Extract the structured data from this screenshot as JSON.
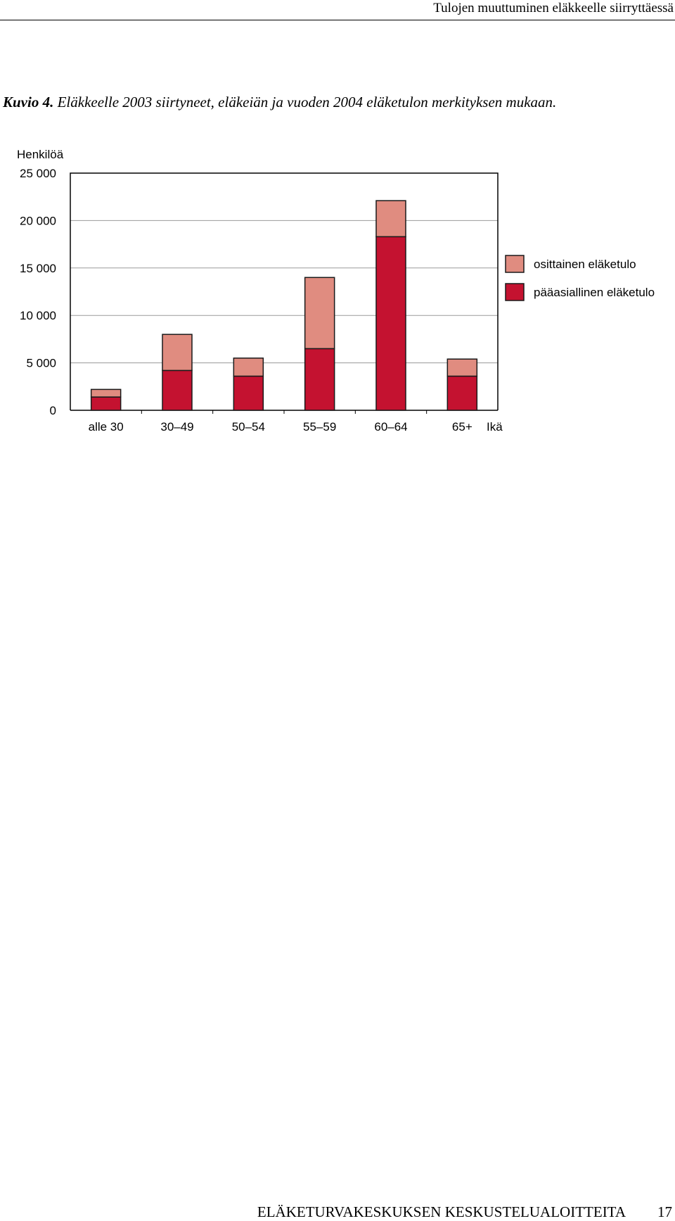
{
  "header": {
    "title": "Tulojen muuttuminen eläkkeelle siirryttäessä"
  },
  "caption": {
    "lead": "Kuvio 4.",
    "text": "Eläkkeelle 2003 siirtyneet, eläkeiän ja vuoden 2004 eläketulon merkityksen mukaan."
  },
  "chart_data": {
    "type": "bar",
    "stacked": true,
    "ylabel": "Henkilöä",
    "xlabel": "Ikä",
    "categories": [
      "alle 30",
      "30–49",
      "50–54",
      "55–59",
      "60–64",
      "65+"
    ],
    "series": [
      {
        "name": "pääasiallinen eläketulo",
        "color": "#c41230",
        "values": [
          1400,
          4200,
          3600,
          6500,
          18300,
          3600
        ]
      },
      {
        "name": "osittainen eläketulo",
        "color": "#e08c80",
        "values": [
          800,
          3800,
          1900,
          7500,
          3800,
          1800
        ]
      }
    ],
    "ylim": [
      0,
      25000
    ],
    "yticks": [
      0,
      5000,
      10000,
      15000,
      20000,
      25000
    ],
    "ytick_labels": [
      "0",
      "5 000",
      "10 000",
      "15 000",
      "20 000",
      "25 000"
    ],
    "grid": true,
    "legend_position": "right"
  },
  "footer": {
    "series_name": "ELÄKETURVAKESKUKSEN KESKUSTELUALOITTEITA",
    "page_number": "17"
  }
}
